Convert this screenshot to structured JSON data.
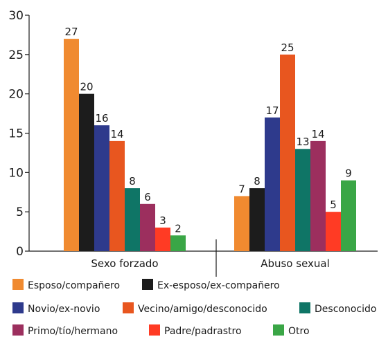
{
  "chart_data": {
    "type": "bar",
    "ylim": [
      0,
      30
    ],
    "yticks": [
      0,
      5,
      10,
      15,
      20,
      25,
      30
    ],
    "grid": false,
    "legend_position": "bottom",
    "categories": [
      "Sexo forzado",
      "Abuso sexual"
    ],
    "series": [
      {
        "name": "Esposo/compañero",
        "color": "#f08a30",
        "values": [
          27,
          7
        ]
      },
      {
        "name": "Ex-esposo/ex-compañero",
        "color": "#1c1c1c",
        "values": [
          20,
          8
        ]
      },
      {
        "name": "Novio/ex-novio",
        "color": "#2e3a8c",
        "values": [
          16,
          17
        ]
      },
      {
        "name": "Vecino/amigo/desconocido",
        "color": "#e8561f",
        "values": [
          14,
          25
        ]
      },
      {
        "name": "Desconocido",
        "color": "#0f7566",
        "values": [
          8,
          13
        ]
      },
      {
        "name": "Primo/tío/hermano",
        "color": "#9c2f5e",
        "values": [
          6,
          14
        ]
      },
      {
        "name": "Padre/padrastro",
        "color": "#ff3b24",
        "values": [
          3,
          5
        ]
      },
      {
        "name": "Otro",
        "color": "#3aa646",
        "values": [
          2,
          9
        ]
      }
    ]
  }
}
